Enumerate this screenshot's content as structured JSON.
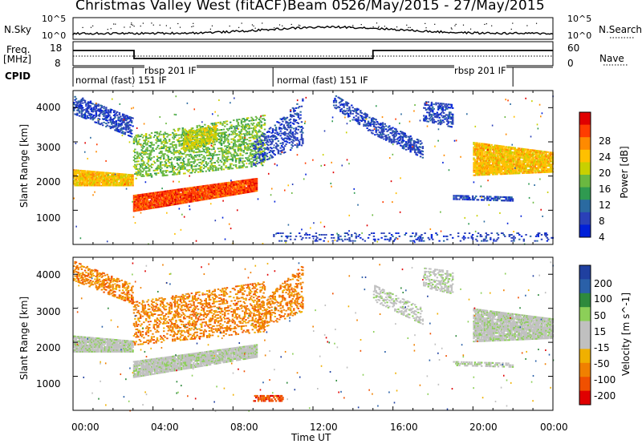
{
  "header": {
    "title": "Christmas Valley West (fitACF)",
    "beam": "Beam 05",
    "dates": "26/May/2015 - 27/May/2015"
  },
  "panels": {
    "nsky_label": "N.Sky",
    "nsky_ticks": [
      "10^5",
      "10^0"
    ],
    "nsearch_label": "N.Search",
    "nsearch_ticks": [
      "10^5",
      "10^0"
    ],
    "freq_label": "Freq.",
    "freq_unit": "[MHz]",
    "freq_ticks": [
      "18",
      "8"
    ],
    "nave_label": "Nave",
    "nave_ticks": [
      "60",
      "0"
    ],
    "cpid_label": "CPID"
  },
  "cpid_modes": [
    {
      "label": "normal (fast) 151 IF",
      "start_h": 0
    },
    {
      "label": "rbsp 201 IF",
      "start_h": 3.0
    },
    {
      "label": "normal (fast) 151 IF",
      "start_h": 10.0
    },
    {
      "label": "rbsp 201 IF",
      "start_h": 22.0
    }
  ],
  "power_colorbar": {
    "label": "Power [dB]",
    "ticks": [
      "28",
      "24",
      "20",
      "16",
      "12",
      "8",
      "4"
    ],
    "colors": [
      "#e00000",
      "#ff3c00",
      "#ff8a00",
      "#ffc000",
      "#c8d000",
      "#6ab840",
      "#2f9a50",
      "#2a6aa0",
      "#2a40b8",
      "#0020d8"
    ]
  },
  "velocity_colorbar": {
    "label": "Velocity [m s^-1]",
    "ticks": [
      "200",
      "100",
      "50",
      "15",
      "-15",
      "-50",
      "-100",
      "-200"
    ],
    "colors": [
      "#2040a0",
      "#2a60a8",
      "#2e8a3c",
      "#8ccf58",
      "#c0c0c0",
      "#c0c0c0",
      "#f0b000",
      "#f08000",
      "#f05000",
      "#e00000"
    ]
  },
  "chart_data": [
    {
      "type": "heatmap",
      "name": "power",
      "ylabel": "Slant Range [km]",
      "ylim": [
        0,
        4500
      ],
      "yticks": [
        1000,
        2000,
        3000,
        4000
      ],
      "xlim_hours": [
        0,
        24
      ],
      "bands": [
        {
          "t0": 0.0,
          "t1": 3.0,
          "r0": 1700,
          "r1": 2200,
          "r0b": 1700,
          "r1b": 2050,
          "color_idx": 3,
          "density": 0.9
        },
        {
          "t0": 3.0,
          "t1": 9.2,
          "r0": 950,
          "r1": 1450,
          "r0b": 1550,
          "r1b": 1950,
          "color_idx": 1,
          "density": 0.95
        },
        {
          "t0": 3.0,
          "t1": 9.6,
          "r0": 1900,
          "r1": 3200,
          "r0b": 2300,
          "r1b": 3800,
          "color_idx": 5,
          "density": 0.35
        },
        {
          "t0": 5.5,
          "t1": 7.2,
          "r0": 2700,
          "r1": 3300,
          "r0b": 3000,
          "r1b": 3500,
          "color_idx": 4,
          "density": 0.6
        },
        {
          "t0": 0.0,
          "t1": 3.0,
          "r0": 3800,
          "r1": 4400,
          "r0b": 3100,
          "r1b": 3700,
          "color_idx": 8,
          "density": 0.5
        },
        {
          "t0": 9.0,
          "t1": 11.5,
          "r0": 2300,
          "r1": 3000,
          "r0b": 2900,
          "r1b": 4300,
          "color_idx": 8,
          "density": 0.3
        },
        {
          "t0": 13.0,
          "t1": 15.0,
          "r0": 4000,
          "r1": 4400,
          "r0b": 3200,
          "r1b": 3700,
          "color_idx": 8,
          "density": 0.4
        },
        {
          "t0": 15.0,
          "t1": 17.5,
          "r0": 3200,
          "r1": 3700,
          "r0b": 2500,
          "r1b": 3000,
          "color_idx": 8,
          "density": 0.45
        },
        {
          "t0": 17.5,
          "t1": 19.0,
          "r0": 3600,
          "r1": 4200,
          "r0b": 3400,
          "r1b": 4100,
          "color_idx": 8,
          "density": 0.4
        },
        {
          "t0": 19.0,
          "t1": 22.0,
          "r0": 1300,
          "r1": 1450,
          "r0b": 1250,
          "r1b": 1400,
          "color_idx": 8,
          "density": 0.55
        },
        {
          "t0": 20.0,
          "t1": 24.0,
          "r0": 2000,
          "r1": 3000,
          "r0b": 2100,
          "r1b": 2700,
          "color_idx": 3,
          "density": 0.85
        },
        {
          "t0": 10.0,
          "t1": 24.0,
          "r0": 80,
          "r1": 350,
          "r0b": 80,
          "r1b": 350,
          "color_idx": 8,
          "density": 0.15
        }
      ]
    },
    {
      "type": "heatmap",
      "name": "velocity",
      "ylabel": "Slant Range [km]",
      "ylim": [
        0,
        4500
      ],
      "yticks": [
        1000,
        2000,
        3000,
        4000
      ],
      "xlim_hours": [
        0,
        24
      ],
      "xlabel": "Time UT",
      "xticks": [
        "00:00",
        "04:00",
        "08:00",
        "12:00",
        "16:00",
        "20:00",
        "00:00"
      ],
      "bands": [
        {
          "t0": 0.0,
          "t1": 3.0,
          "r0": 1700,
          "r1": 2200,
          "r0b": 1700,
          "r1b": 2050,
          "color_idx": 4,
          "density": 0.9
        },
        {
          "t0": 3.0,
          "t1": 9.2,
          "r0": 950,
          "r1": 1450,
          "r0b": 1550,
          "r1b": 1950,
          "color_idx": 4,
          "density": 0.9
        },
        {
          "t0": 3.0,
          "t1": 9.6,
          "r0": 1900,
          "r1": 3200,
          "r0b": 2300,
          "r1b": 3800,
          "color_idx": 7,
          "density": 0.3
        },
        {
          "t0": 0.0,
          "t1": 3.0,
          "r0": 3800,
          "r1": 4400,
          "r0b": 3100,
          "r1b": 3700,
          "color_idx": 7,
          "density": 0.45
        },
        {
          "t0": 9.0,
          "t1": 11.5,
          "r0": 2300,
          "r1": 3000,
          "r0b": 2900,
          "r1b": 4300,
          "color_idx": 7,
          "density": 0.3
        },
        {
          "t0": 15.0,
          "t1": 17.5,
          "r0": 3200,
          "r1": 3700,
          "r0b": 2500,
          "r1b": 3000,
          "color_idx": 4,
          "density": 0.35
        },
        {
          "t0": 17.5,
          "t1": 19.0,
          "r0": 3600,
          "r1": 4200,
          "r0b": 3400,
          "r1b": 4100,
          "color_idx": 4,
          "density": 0.4
        },
        {
          "t0": 19.0,
          "t1": 22.0,
          "r0": 1300,
          "r1": 1450,
          "r0b": 1250,
          "r1b": 1400,
          "color_idx": 4,
          "density": 0.55
        },
        {
          "t0": 20.0,
          "t1": 24.0,
          "r0": 2000,
          "r1": 3000,
          "r0b": 2100,
          "r1b": 2700,
          "color_idx": 4,
          "density": 0.85
        },
        {
          "t0": 9.0,
          "t1": 10.5,
          "r0": 250,
          "r1": 450,
          "r0b": 250,
          "r1b": 450,
          "color_idx": 8,
          "density": 0.6
        }
      ]
    }
  ]
}
